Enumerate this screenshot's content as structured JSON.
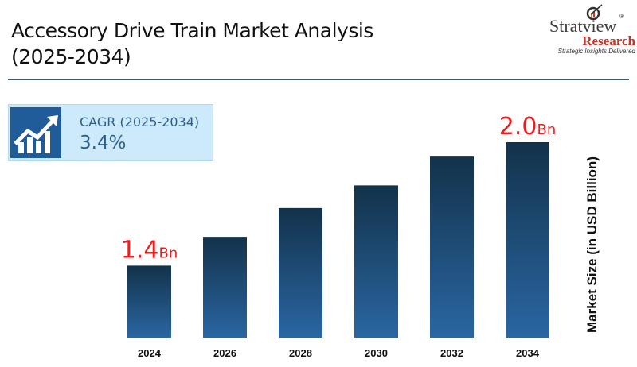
{
  "header": {
    "title_line1": "Accessory Drive Train Market Analysis",
    "title_line2": "(2025-2034)"
  },
  "logo": {
    "brand": "Stratview",
    "research": "Research",
    "tagline": "Strategic Insights Delivered",
    "registered": "®"
  },
  "cagr": {
    "icon": "growth-chart-icon",
    "label": "CAGR (2025-2034)",
    "value": "3.4%"
  },
  "chart_data": {
    "type": "bar",
    "categories": [
      "2024",
      "2026",
      "2028",
      "2030",
      "2032",
      "2034"
    ],
    "values": [
      1.4,
      1.54,
      1.68,
      1.79,
      1.93,
      2.0
    ],
    "ylabel": "Market Size (in USD Billion)",
    "ylim": [
      1.05,
      2.0
    ],
    "grid": false,
    "annotations": [
      {
        "category": "2024",
        "value": "1.4",
        "unit": "Bn"
      },
      {
        "category": "2034",
        "value": "2.0",
        "unit": "Bn"
      }
    ],
    "colors": {
      "bar_top": "#13324a",
      "bar_bottom": "#2a66a3",
      "annotation": "#ee1c1c"
    }
  }
}
